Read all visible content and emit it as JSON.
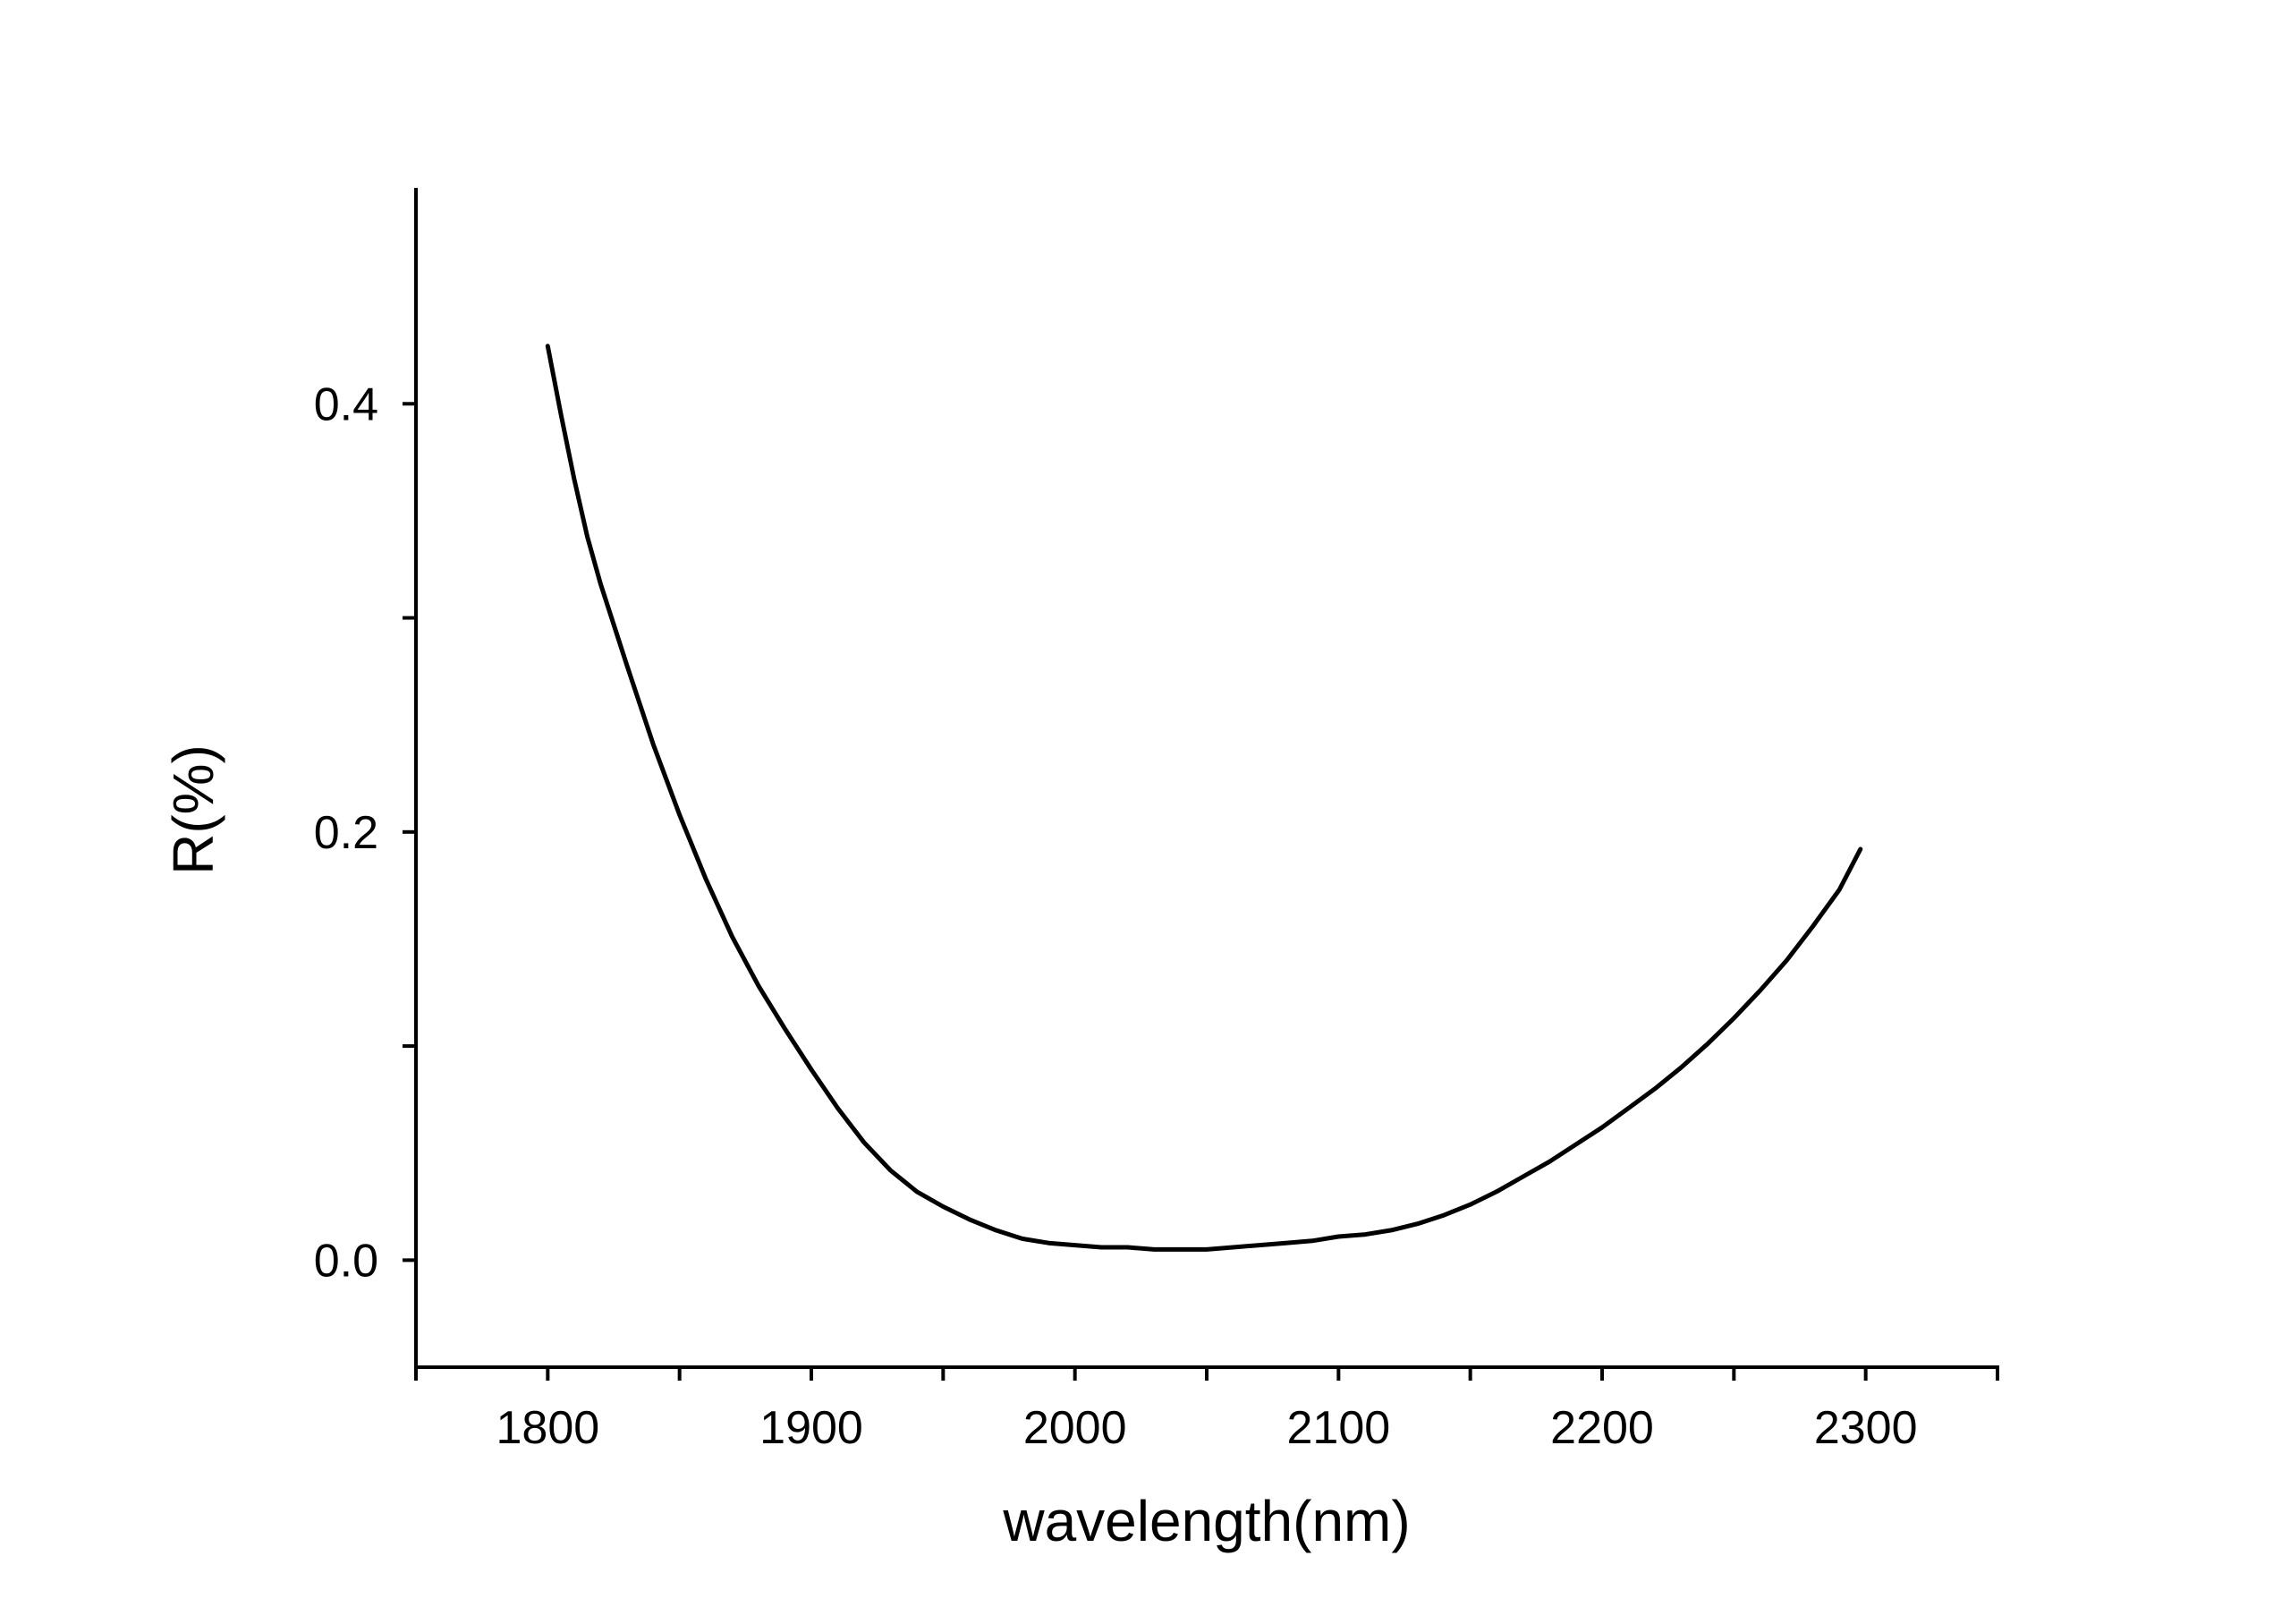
{
  "chart_data": {
    "type": "line",
    "title": "",
    "xlabel": "wavelength(nm)",
    "ylabel": "R(%)",
    "xlim": [
      1750,
      2350
    ],
    "ylim": [
      -0.05,
      0.5
    ],
    "x_ticks": [
      1800,
      1900,
      2000,
      2100,
      2200,
      2300
    ],
    "x_tick_labels": [
      "1800",
      "1900",
      "2000",
      "2100",
      "2200",
      "2300"
    ],
    "x_minor_ticks": [
      1750,
      1850,
      1950,
      2050,
      2150,
      2250,
      2350
    ],
    "y_ticks": [
      0.0,
      0.2,
      0.4
    ],
    "y_tick_labels": [
      "0.0",
      "0.2",
      "0.4"
    ],
    "y_minor_ticks": [
      0.1,
      0.3
    ],
    "grid": false,
    "line_color": "#000000",
    "series": [
      {
        "x": [
          1800,
          1805,
          1810,
          1815,
          1820,
          1830,
          1840,
          1850,
          1860,
          1870,
          1880,
          1890,
          1900,
          1910,
          1920,
          1930,
          1940,
          1950,
          1960,
          1970,
          1980,
          1990,
          2000,
          2010,
          2020,
          2030,
          2040,
          2050,
          2060,
          2070,
          2080,
          2090,
          2100,
          2110,
          2120,
          2130,
          2140,
          2150,
          2160,
          2170,
          2180,
          2190,
          2200,
          2210,
          2220,
          2230,
          2240,
          2250,
          2260,
          2270,
          2280,
          2290,
          2298
        ],
        "y": [
          0.427,
          0.395,
          0.365,
          0.338,
          0.316,
          0.278,
          0.241,
          0.208,
          0.178,
          0.151,
          0.128,
          0.108,
          0.089,
          0.071,
          0.055,
          0.042,
          0.032,
          0.025,
          0.019,
          0.014,
          0.01,
          0.008,
          0.007,
          0.006,
          0.006,
          0.005,
          0.005,
          0.005,
          0.006,
          0.007,
          0.008,
          0.009,
          0.011,
          0.012,
          0.014,
          0.017,
          0.021,
          0.026,
          0.032,
          0.039,
          0.046,
          0.054,
          0.062,
          0.071,
          0.08,
          0.09,
          0.101,
          0.113,
          0.126,
          0.14,
          0.156,
          0.173,
          0.192
        ]
      }
    ]
  }
}
